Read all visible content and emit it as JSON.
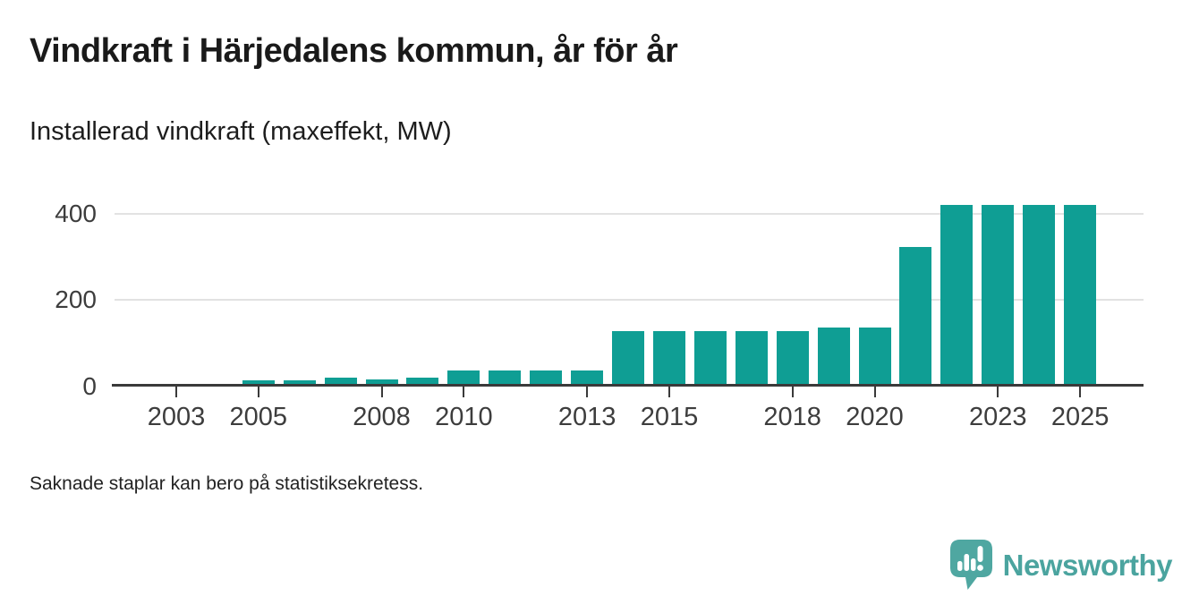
{
  "header": {
    "title": "Vindkraft i Härjedalens kommun, år för år",
    "subtitle": "Installerad vindkraft (maxeffekt, MW)"
  },
  "footer": {
    "note": "Saknade staplar kan bero på statistiksekretess."
  },
  "branding": {
    "name": "Newsworthy",
    "logo_icon": "speech-bubble-bar-chart-icon",
    "logo_color": "#4fa7a1"
  },
  "chart_data": {
    "type": "bar",
    "title": "Vindkraft i Härjedalens kommun, år för år",
    "subtitle": "Installerad vindkraft (maxeffekt, MW)",
    "unit": "MW",
    "x": [
      2002,
      2003,
      2004,
      2005,
      2006,
      2007,
      2008,
      2009,
      2010,
      2011,
      2012,
      2013,
      2014,
      2015,
      2016,
      2017,
      2018,
      2019,
      2020,
      2021,
      2022,
      2023,
      2024,
      2025
    ],
    "values": [
      null,
      5,
      4,
      14,
      13,
      19,
      16,
      20,
      36,
      36,
      37,
      37,
      127,
      127,
      127,
      127,
      127,
      136,
      136,
      324,
      421,
      421,
      421,
      421
    ],
    "x_tick_years": [
      2003,
      2005,
      2008,
      2010,
      2013,
      2015,
      2018,
      2020,
      2023,
      2025
    ],
    "y_ticks": [
      0,
      200,
      400
    ],
    "ylim": [
      0,
      440
    ],
    "grid": "horizontal",
    "legend": "none",
    "bar_color": "#0f9e94",
    "axis_color": "#3a3a3a",
    "gridline_color": "#e2e2e2"
  }
}
